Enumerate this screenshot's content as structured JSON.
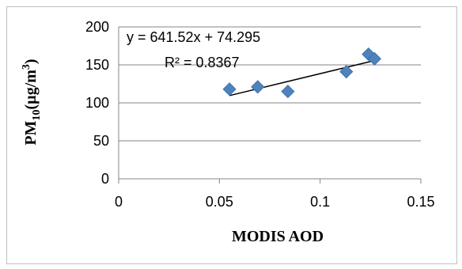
{
  "chart_data": {
    "type": "scatter",
    "xlabel": "MODIS AOD",
    "ylabel": {
      "main": "PM",
      "subscript": "10",
      "unit_open": "(µg/m",
      "superscript": "3",
      "unit_close": ")"
    },
    "xlim": [
      0,
      0.15
    ],
    "ylim": [
      0,
      200
    ],
    "xticks": [
      0,
      0.05,
      0.1,
      0.15
    ],
    "xtick_labels": [
      "0",
      "0.05",
      "0.1",
      "0.15"
    ],
    "yticks": [
      0,
      50,
      100,
      150,
      200
    ],
    "ytick_labels": [
      "0",
      "50",
      "100",
      "150",
      "200"
    ],
    "grid": "horizontal",
    "marker": "diamond",
    "point_color": "#4f81bd",
    "trendline_color": "#000000",
    "points": [
      {
        "x": 0.055,
        "y": 118
      },
      {
        "x": 0.069,
        "y": 121
      },
      {
        "x": 0.084,
        "y": 115
      },
      {
        "x": 0.113,
        "y": 141
      },
      {
        "x": 0.124,
        "y": 164
      },
      {
        "x": 0.127,
        "y": 158
      }
    ],
    "trendline": {
      "slope": 641.52,
      "intercept": 74.295,
      "x_range": [
        0.055,
        0.127
      ],
      "equation_label": "y = 641.52x + 74.295",
      "r2_label": "R² = 0.8367"
    }
  }
}
